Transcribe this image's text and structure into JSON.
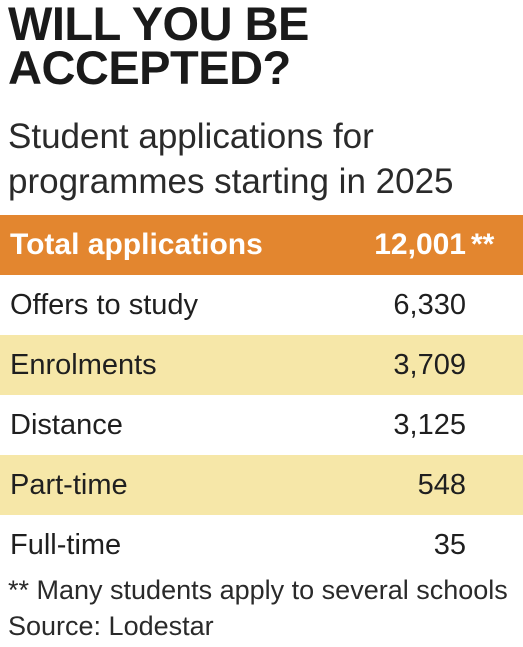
{
  "title": "WILL YOU BE ACCEPTED?",
  "subtitle": "Student applications for programmes starting in 2025",
  "colors": {
    "header_bg": "#e3862f",
    "stripe_bg": "#f6e7a8",
    "plain_bg": "#ffffff"
  },
  "chart_data": {
    "type": "table",
    "title": "WILL YOU BE ACCEPTED?",
    "subtitle": "Student applications for programmes starting in 2025",
    "header": {
      "label": "Total applications",
      "value": "12,001",
      "marker": "**"
    },
    "rows": [
      {
        "label": "Offers to study",
        "value": "6,330"
      },
      {
        "label": "Enrolments",
        "value": "3,709"
      },
      {
        "label": "Distance",
        "value": "3,125"
      },
      {
        "label": "Part-time",
        "value": "548"
      },
      {
        "label": "Full-time",
        "value": "35"
      }
    ]
  },
  "footnote": "** Many students apply to several schools",
  "source": "Source: Lodestar"
}
